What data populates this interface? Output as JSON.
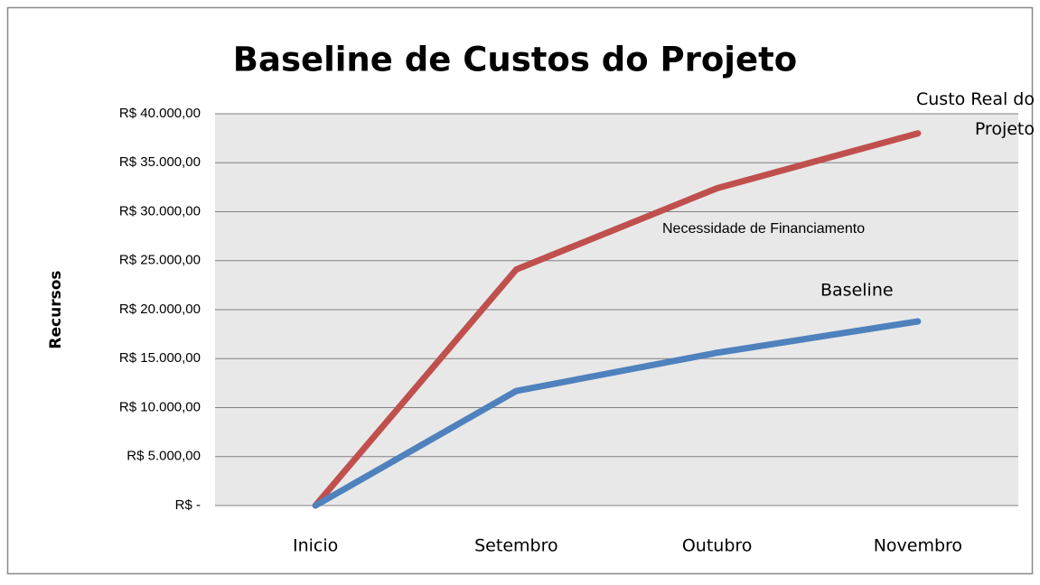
{
  "chart_data": {
    "type": "line",
    "title": "Baseline de Custos do Projeto",
    "ylabel": "Recursos",
    "categories": [
      "Inicio",
      "Setembro",
      "Outubro",
      "Novembro"
    ],
    "series": [
      {
        "name": "Custo Real do Projeto",
        "color": "#c0504d",
        "values": [
          0,
          24100,
          32400,
          38000
        ]
      },
      {
        "name": "Baseline",
        "color": "#4f81bd",
        "values": [
          0,
          11700,
          15600,
          18800
        ]
      }
    ],
    "annotations": [
      "Necessidade de Financiamento"
    ],
    "ylim": [
      0,
      40000
    ],
    "yticks": [
      {
        "value": 0,
        "label": "R$ -"
      },
      {
        "value": 5000,
        "label": "R$ 5.000,00"
      },
      {
        "value": 10000,
        "label": "R$ 10.000,00"
      },
      {
        "value": 15000,
        "label": "R$ 15.000,00"
      },
      {
        "value": 20000,
        "label": "R$ 20.000,00"
      },
      {
        "value": 25000,
        "label": "R$ 25.000,00"
      },
      {
        "value": 30000,
        "label": "R$ 30.000,00"
      },
      {
        "value": 35000,
        "label": "R$ 35.000,00"
      },
      {
        "value": 40000,
        "label": "R$ 40.000,00"
      }
    ],
    "grid": true
  }
}
